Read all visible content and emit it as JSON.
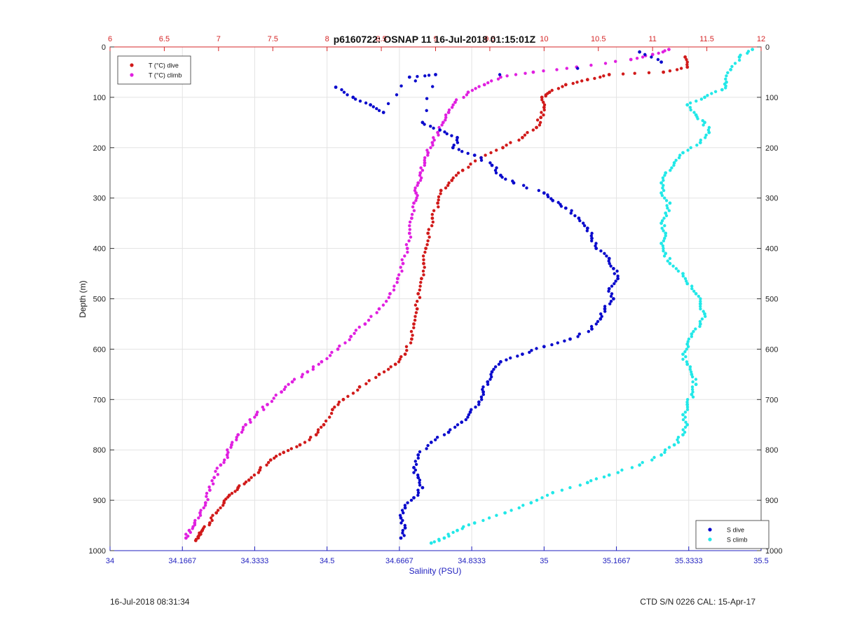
{
  "chart_data": {
    "type": "scatter",
    "title": "p6160722: OSNAP 11 16-Jul-2018 01:15:01Z",
    "ylabel": "Depth (m)",
    "xlabel_bottom": "Salinity (PSU)",
    "xlabel_top": "",
    "grid": true,
    "y_range": [
      0,
      1000
    ],
    "y_ticks": [
      "0",
      "100",
      "200",
      "300",
      "400",
      "500",
      "600",
      "700",
      "800",
      "900",
      "1000"
    ],
    "bottom_axis": {
      "range": [
        34,
        35.5
      ],
      "ticks": [
        34,
        34.1667,
        34.3333,
        34.5,
        34.6667,
        34.8333,
        35,
        35.1667,
        35.3333,
        35.5
      ],
      "tick_labels": [
        "34",
        "34.1667",
        "34.3333",
        "34.5",
        "34.6667",
        "34.8333",
        "35",
        "35.1667",
        "35.3333",
        "35.5"
      ],
      "color": "#1f1fbf"
    },
    "top_axis": {
      "range": [
        6,
        12
      ],
      "ticks": [
        6,
        6.5,
        7,
        7.5,
        8,
        8.5,
        9,
        9.5,
        10,
        10.5,
        11,
        11.5,
        12
      ],
      "tick_labels": [
        "6",
        "6.5",
        "7",
        "7.5",
        "8",
        "8.5",
        "9",
        "9.5",
        "10",
        "10.5",
        "11",
        "11.5",
        "12"
      ],
      "color": "#d62728"
    },
    "legend_top": {
      "placement": "top-left",
      "entries": [
        {
          "label": "T (°C) dive",
          "color": "#d11a1a"
        },
        {
          "label": "T (°C) climb",
          "color": "#e020e0"
        }
      ]
    },
    "legend_bottom": {
      "placement": "bottom-right",
      "entries": [
        {
          "label": "S dive",
          "color": "#0a0acc"
        },
        {
          "label": "S climb",
          "color": "#22e8e8"
        }
      ]
    },
    "series": [
      {
        "name": "T (°C) dive",
        "axis": "top",
        "color": "#d11a1a",
        "points": [
          [
            11.3,
            20
          ],
          [
            11.32,
            40
          ],
          [
            11.1,
            50
          ],
          [
            10.6,
            55
          ],
          [
            10.4,
            65
          ],
          [
            10.2,
            75
          ],
          [
            10.05,
            90
          ],
          [
            9.98,
            100
          ],
          [
            10.0,
            120
          ],
          [
            9.97,
            140
          ],
          [
            9.93,
            160
          ],
          [
            9.8,
            180
          ],
          [
            9.62,
            200
          ],
          [
            9.42,
            220
          ],
          [
            9.25,
            245
          ],
          [
            9.15,
            265
          ],
          [
            9.05,
            285
          ],
          [
            9.02,
            310
          ],
          [
            8.97,
            340
          ],
          [
            8.93,
            370
          ],
          [
            8.91,
            400
          ],
          [
            8.89,
            430
          ],
          [
            8.87,
            460
          ],
          [
            8.84,
            490
          ],
          [
            8.83,
            520
          ],
          [
            8.8,
            550
          ],
          [
            8.78,
            580
          ],
          [
            8.72,
            610
          ],
          [
            8.63,
            630
          ],
          [
            8.48,
            650
          ],
          [
            8.3,
            675
          ],
          [
            8.15,
            700
          ],
          [
            8.05,
            720
          ],
          [
            7.97,
            750
          ],
          [
            7.9,
            770
          ],
          [
            7.75,
            790
          ],
          [
            7.6,
            805
          ],
          [
            7.48,
            820
          ],
          [
            7.38,
            840
          ],
          [
            7.28,
            860
          ],
          [
            7.18,
            875
          ],
          [
            7.1,
            890
          ],
          [
            7.05,
            905
          ],
          [
            6.98,
            925
          ],
          [
            6.92,
            945
          ],
          [
            6.85,
            960
          ],
          [
            6.82,
            970
          ],
          [
            6.79,
            980
          ]
        ]
      },
      {
        "name": "T (°C) climb",
        "axis": "top",
        "color": "#e020e0",
        "points": [
          [
            11.15,
            5
          ],
          [
            11.0,
            15
          ],
          [
            10.8,
            25
          ],
          [
            10.3,
            40
          ],
          [
            9.9,
            50
          ],
          [
            9.6,
            60
          ],
          [
            9.45,
            75
          ],
          [
            9.3,
            90
          ],
          [
            9.18,
            110
          ],
          [
            9.12,
            130
          ],
          [
            9.07,
            150
          ],
          [
            9.02,
            170
          ],
          [
            8.97,
            190
          ],
          [
            8.93,
            210
          ],
          [
            8.9,
            230
          ],
          [
            8.86,
            250
          ],
          [
            8.84,
            270
          ],
          [
            8.82,
            290
          ],
          [
            8.8,
            310
          ],
          [
            8.78,
            340
          ],
          [
            8.76,
            370
          ],
          [
            8.74,
            400
          ],
          [
            8.7,
            430
          ],
          [
            8.65,
            460
          ],
          [
            8.58,
            490
          ],
          [
            8.48,
            520
          ],
          [
            8.35,
            550
          ],
          [
            8.22,
            575
          ],
          [
            8.1,
            600
          ],
          [
            7.95,
            625
          ],
          [
            7.82,
            645
          ],
          [
            7.68,
            665
          ],
          [
            7.58,
            685
          ],
          [
            7.45,
            710
          ],
          [
            7.35,
            730
          ],
          [
            7.25,
            750
          ],
          [
            7.18,
            770
          ],
          [
            7.12,
            790
          ],
          [
            7.08,
            810
          ],
          [
            7.02,
            830
          ],
          [
            6.96,
            855
          ],
          [
            6.92,
            880
          ],
          [
            6.88,
            905
          ],
          [
            6.83,
            925
          ],
          [
            6.78,
            945
          ],
          [
            6.73,
            960
          ],
          [
            6.7,
            975
          ]
        ]
      },
      {
        "name": "S dive",
        "axis": "bottom",
        "color": "#0a0acc",
        "points": [
          [
            35.22,
            10
          ],
          [
            35.27,
            30
          ],
          [
            34.52,
            80
          ],
          [
            34.56,
            100
          ],
          [
            34.6,
            115
          ],
          [
            34.63,
            130
          ],
          [
            34.69,
            60
          ],
          [
            34.75,
            55
          ],
          [
            34.72,
            150
          ],
          [
            34.76,
            165
          ],
          [
            34.8,
            180
          ],
          [
            34.79,
            200
          ],
          [
            34.84,
            215
          ],
          [
            34.88,
            235
          ],
          [
            34.9,
            255
          ],
          [
            34.93,
            270
          ],
          [
            35.0,
            290
          ],
          [
            35.02,
            305
          ],
          [
            35.05,
            320
          ],
          [
            35.08,
            340
          ],
          [
            35.1,
            360
          ],
          [
            35.11,
            380
          ],
          [
            35.12,
            400
          ],
          [
            35.15,
            420
          ],
          [
            35.16,
            440
          ],
          [
            35.17,
            460
          ],
          [
            35.15,
            480
          ],
          [
            35.16,
            500
          ],
          [
            35.14,
            520
          ],
          [
            35.13,
            540
          ],
          [
            35.11,
            560
          ],
          [
            35.06,
            580
          ],
          [
            35.0,
            595
          ],
          [
            34.95,
            610
          ],
          [
            34.9,
            625
          ],
          [
            34.88,
            645
          ],
          [
            34.87,
            665
          ],
          [
            34.86,
            685
          ],
          [
            34.85,
            705
          ],
          [
            34.83,
            725
          ],
          [
            34.81,
            745
          ],
          [
            34.78,
            765
          ],
          [
            34.74,
            785
          ],
          [
            34.71,
            810
          ],
          [
            34.7,
            835
          ],
          [
            34.71,
            855
          ],
          [
            34.72,
            875
          ],
          [
            34.7,
            895
          ],
          [
            34.68,
            915
          ],
          [
            34.67,
            935
          ],
          [
            34.68,
            955
          ],
          [
            34.67,
            975
          ]
        ]
      },
      {
        "name": "S climb",
        "axis": "bottom",
        "color": "#22e8e8",
        "points": [
          [
            35.48,
            5
          ],
          [
            35.45,
            20
          ],
          [
            35.43,
            45
          ],
          [
            35.42,
            70
          ],
          [
            35.41,
            85
          ],
          [
            35.37,
            100
          ],
          [
            35.33,
            115
          ],
          [
            35.35,
            135
          ],
          [
            35.37,
            150
          ],
          [
            35.38,
            170
          ],
          [
            35.36,
            190
          ],
          [
            35.32,
            210
          ],
          [
            35.3,
            230
          ],
          [
            35.28,
            250
          ],
          [
            35.27,
            270
          ],
          [
            35.27,
            290
          ],
          [
            35.29,
            310
          ],
          [
            35.28,
            330
          ],
          [
            35.27,
            350
          ],
          [
            35.28,
            370
          ],
          [
            35.27,
            390
          ],
          [
            35.28,
            410
          ],
          [
            35.29,
            430
          ],
          [
            35.32,
            450
          ],
          [
            35.33,
            470
          ],
          [
            35.35,
            490
          ],
          [
            35.36,
            510
          ],
          [
            35.37,
            530
          ],
          [
            35.36,
            550
          ],
          [
            35.34,
            570
          ],
          [
            35.33,
            590
          ],
          [
            35.32,
            610
          ],
          [
            35.33,
            630
          ],
          [
            35.34,
            650
          ],
          [
            35.35,
            670
          ],
          [
            35.34,
            690
          ],
          [
            35.33,
            710
          ],
          [
            35.32,
            730
          ],
          [
            35.33,
            750
          ],
          [
            35.32,
            770
          ],
          [
            35.3,
            790
          ],
          [
            35.27,
            810
          ],
          [
            35.22,
            830
          ],
          [
            35.15,
            850
          ],
          [
            35.1,
            865
          ],
          [
            35.02,
            885
          ],
          [
            34.97,
            905
          ],
          [
            34.91,
            925
          ],
          [
            34.84,
            945
          ],
          [
            34.8,
            960
          ],
          [
            34.77,
            975
          ],
          [
            34.74,
            985
          ]
        ]
      }
    ]
  },
  "footer": {
    "left": "16-Jul-2018 08:31:34",
    "right": "CTD S/N 0226  CAL: 15-Apr-17"
  }
}
